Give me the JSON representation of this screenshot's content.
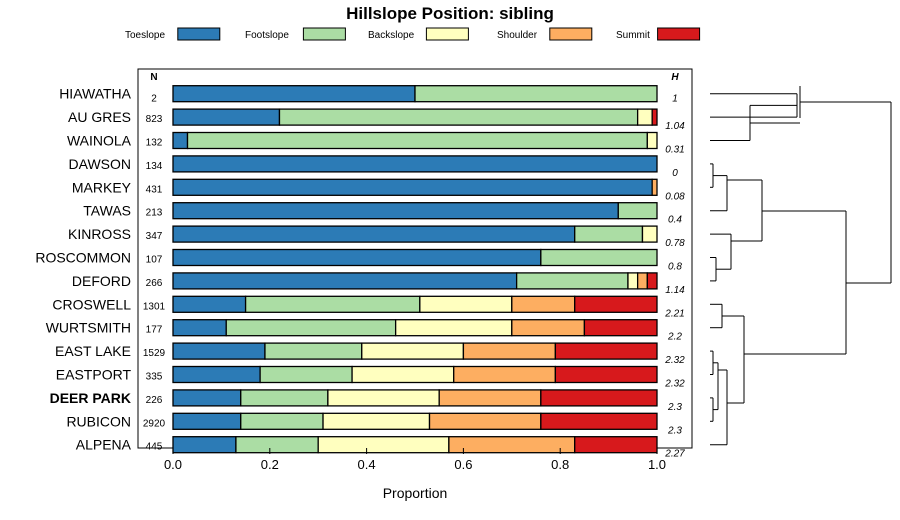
{
  "chart_data": {
    "type": "bar",
    "orientation": "horizontal",
    "stacked": true,
    "title": "Hillslope Position: sibling",
    "xlabel": "Proportion",
    "xlim": [
      0,
      1
    ],
    "xticks": [
      "0.0",
      "0.2",
      "0.4",
      "0.6",
      "0.8",
      "1.0"
    ],
    "legend_placement": "top",
    "n_header": "N",
    "h_header": "H",
    "highlight": "DEER PARK",
    "categories": [
      "HIAWATHA",
      "AU GRES",
      "WAINOLA",
      "DAWSON",
      "MARKEY",
      "TAWAS",
      "KINROSS",
      "ROSCOMMON",
      "DEFORD",
      "CROSWELL",
      "WURTSMITH",
      "EAST LAKE",
      "EASTPORT",
      "DEER PARK",
      "RUBICON",
      "ALPENA"
    ],
    "n": [
      "2",
      "823",
      "132",
      "134",
      "431",
      "213",
      "347",
      "107",
      "266",
      "1301",
      "177",
      "1529",
      "335",
      "226",
      "2920",
      "445"
    ],
    "h": [
      "1",
      "1.04",
      "0.31",
      "0",
      "0.08",
      "0.4",
      "0.78",
      "0.8",
      "1.14",
      "2.21",
      "2.2",
      "2.32",
      "2.32",
      "2.3",
      "2.3",
      "2.27"
    ],
    "series": [
      {
        "name": "Toeslope",
        "color": "#2c7bb6",
        "values": [
          0.5,
          0.22,
          0.03,
          1.0,
          0.99,
          0.92,
          0.83,
          0.76,
          0.71,
          0.15,
          0.11,
          0.19,
          0.18,
          0.14,
          0.14,
          0.13
        ]
      },
      {
        "name": "Footslope",
        "color": "#abdda4",
        "values": [
          0.5,
          0.74,
          0.95,
          0.0,
          0.0,
          0.08,
          0.14,
          0.24,
          0.23,
          0.36,
          0.35,
          0.2,
          0.19,
          0.18,
          0.17,
          0.17
        ]
      },
      {
        "name": "Backslope",
        "color": "#ffffbf",
        "values": [
          0.0,
          0.03,
          0.02,
          0.0,
          0.0,
          0.0,
          0.03,
          0.0,
          0.02,
          0.19,
          0.24,
          0.21,
          0.21,
          0.23,
          0.22,
          0.27
        ]
      },
      {
        "name": "Shoulder",
        "color": "#fdae61",
        "values": [
          0.0,
          0.0,
          0.0,
          0.0,
          0.01,
          0.0,
          0.0,
          0.0,
          0.02,
          0.13,
          0.15,
          0.19,
          0.21,
          0.21,
          0.23,
          0.26
        ]
      },
      {
        "name": "Summit",
        "color": "#d7191c",
        "values": [
          0.0,
          0.01,
          0.0,
          0.0,
          0.0,
          0.0,
          0.0,
          0.0,
          0.02,
          0.17,
          0.15,
          0.21,
          0.21,
          0.24,
          0.24,
          0.17
        ]
      }
    ],
    "dendrogram": {
      "leaf_order": [
        "HIAWATHA",
        "AU GRES",
        "WAINOLA",
        "DAWSON",
        "MARKEY",
        "TAWAS",
        "KINROSS",
        "ROSCOMMON",
        "DEFORD",
        "CROSWELL",
        "WURTSMITH",
        "EAST LAKE",
        "EASTPORT",
        "DEER PARK",
        "RUBICON",
        "ALPENA"
      ]
    }
  }
}
